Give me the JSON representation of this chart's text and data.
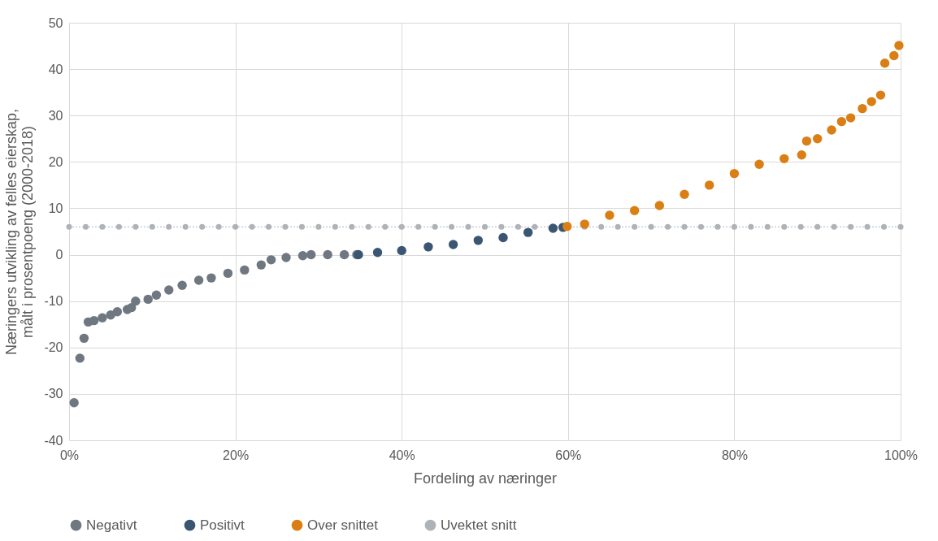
{
  "chart_data": {
    "type": "scatter",
    "xlabel": "Fordeling av næringer",
    "ylabel": "Næringers utvikling av felles eierskap, målt i prosentpoeng (2000-2018)",
    "xlim": [
      0,
      100
    ],
    "xticks": [
      {
        "value": 0,
        "label": "0%"
      },
      {
        "value": 20,
        "label": "20%"
      },
      {
        "value": 40,
        "label": "40%"
      },
      {
        "value": 60,
        "label": "60%"
      },
      {
        "value": 80,
        "label": "80%"
      },
      {
        "value": 100,
        "label": "100%"
      }
    ],
    "ylim": [
      -40,
      50
    ],
    "yticks": [
      -40,
      -30,
      -20,
      -10,
      0,
      10,
      20,
      30,
      40,
      50
    ],
    "grid": true,
    "legend": "bottom",
    "marker": "circle",
    "series": [
      {
        "name": "Negativt",
        "color": "#6f7780",
        "x": [
          0.6,
          1.3,
          1.8,
          2.3,
          3.0,
          4.0,
          5.0,
          5.8,
          7.0,
          7.5,
          8.0,
          9.5,
          10.5,
          12.0,
          13.6,
          15.6,
          17.1,
          19.1,
          21.1,
          23.1,
          24.3,
          26.1,
          28.1,
          29.1,
          31.1,
          33.1,
          34.6
        ],
        "values": [
          -31.9,
          -22.3,
          -18.0,
          -14.5,
          -14.2,
          -13.6,
          -13.0,
          -12.3,
          -11.8,
          -11.4,
          -10.0,
          -9.6,
          -8.7,
          -7.6,
          -6.6,
          -5.5,
          -5.0,
          -4.0,
          -3.3,
          -2.2,
          -1.1,
          -0.6,
          -0.2,
          0,
          0,
          0,
          0
        ]
      },
      {
        "name": "Positivt",
        "color": "#3a5673",
        "x": [
          34.8,
          37.1,
          40.0,
          43.2,
          46.2,
          49.2,
          52.2,
          55.2,
          58.2,
          59.4
        ],
        "values": [
          0.0,
          0.5,
          0.9,
          1.7,
          2.2,
          3.1,
          3.7,
          4.8,
          5.7,
          5.9
        ]
      },
      {
        "name": "Over snittet",
        "color": "#d97f16",
        "x": [
          59.9,
          62.0,
          65.0,
          68.0,
          71.0,
          74.0,
          77.0,
          80.0,
          83.0,
          86.0,
          88.1,
          88.7,
          90.0,
          91.7,
          92.9,
          94.0,
          95.4,
          96.5,
          97.6,
          98.1,
          99.2,
          99.8
        ],
        "values": [
          6.1,
          6.6,
          8.5,
          9.5,
          10.6,
          13.0,
          15.0,
          17.5,
          19.5,
          20.7,
          21.5,
          24.5,
          25.0,
          26.9,
          28.7,
          29.5,
          31.5,
          33.0,
          34.4,
          41.3,
          42.9,
          45.1
        ]
      },
      {
        "name": "Uvektet snitt",
        "type": "line",
        "line_style": "dotted",
        "color": "#aeb3b8",
        "x": [
          0,
          2,
          4,
          6,
          8,
          10,
          12,
          14,
          16,
          18,
          20,
          22,
          24,
          26,
          28,
          30,
          32,
          34,
          36,
          38,
          40,
          42,
          44,
          46,
          48,
          50,
          52,
          54,
          56,
          62,
          64,
          66,
          68,
          70,
          72,
          74,
          76,
          78,
          80,
          82,
          84,
          86,
          88,
          90,
          92,
          94,
          96,
          98,
          100
        ],
        "values": [
          6,
          6,
          6,
          6,
          6,
          6,
          6,
          6,
          6,
          6,
          6,
          6,
          6,
          6,
          6,
          6,
          6,
          6,
          6,
          6,
          6,
          6,
          6,
          6,
          6,
          6,
          6,
          6,
          6,
          6,
          6,
          6,
          6,
          6,
          6,
          6,
          6,
          6,
          6,
          6,
          6,
          6,
          6,
          6,
          6,
          6,
          6,
          6,
          6
        ]
      }
    ]
  }
}
